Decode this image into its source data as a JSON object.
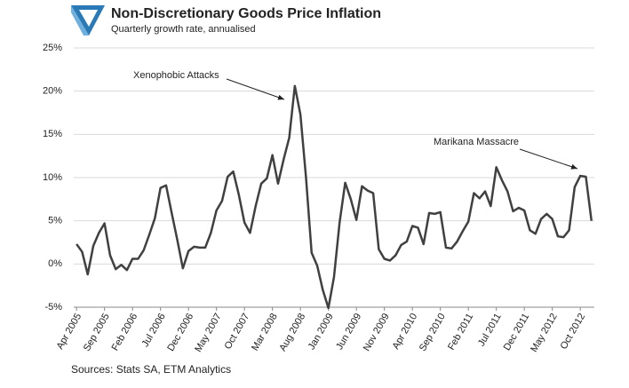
{
  "chart_data": {
    "type": "line",
    "title": "Non-Discretionary Goods Price Inflation",
    "subtitle": "Quarterly growth rate, annualised",
    "source": "Sources: Stats SA, ETM Analytics",
    "categories": [
      "Apr 2005",
      null,
      null,
      null,
      null,
      "Sep 2005",
      null,
      null,
      null,
      null,
      "Feb 2006",
      null,
      null,
      null,
      null,
      "Jul 2006",
      null,
      null,
      null,
      null,
      "Dec 2006",
      null,
      null,
      null,
      null,
      "May 2007",
      null,
      null,
      null,
      null,
      "Oct 2007",
      null,
      null,
      null,
      null,
      "Mar 2008",
      null,
      null,
      null,
      null,
      "Aug 2008",
      null,
      null,
      null,
      null,
      "Jan 2009",
      null,
      null,
      null,
      null,
      "Jun 2009",
      null,
      null,
      null,
      null,
      "Nov 2009",
      null,
      null,
      null,
      null,
      "Apr 2010",
      null,
      null,
      null,
      null,
      "Sep 2010",
      null,
      null,
      null,
      null,
      "Feb 2011",
      null,
      null,
      null,
      null,
      "Jul 2011",
      null,
      null,
      null,
      null,
      "Dec 2011",
      null,
      null,
      null,
      null,
      "May 2012",
      null,
      null,
      null,
      null,
      "Oct 2012",
      null,
      null
    ],
    "series": [
      {
        "name": "Non-Discretionary Goods Price Inflation",
        "color": "#404040",
        "values": [
          2.3,
          1.4,
          -1.2,
          2.1,
          3.6,
          4.7,
          1.0,
          -0.6,
          -0.1,
          -0.7,
          0.6,
          0.6,
          1.6,
          3.4,
          5.3,
          8.8,
          9.1,
          5.9,
          2.8,
          -0.5,
          1.5,
          2.0,
          1.9,
          1.9,
          3.6,
          6.2,
          7.3,
          10.1,
          10.7,
          8.0,
          4.8,
          3.6,
          6.7,
          9.3,
          9.9,
          12.6,
          9.3,
          12.1,
          14.6,
          20.6,
          17.3,
          10.0,
          1.3,
          -0.2,
          -3.0,
          -5.1,
          -1.5,
          4.8,
          9.4,
          7.5,
          5.1,
          9.0,
          8.5,
          8.2,
          1.7,
          0.6,
          0.4,
          1.0,
          2.2,
          2.6,
          4.4,
          4.2,
          2.3,
          5.9,
          5.8,
          6.0,
          1.9,
          1.8,
          2.6,
          3.8,
          4.9,
          8.2,
          7.6,
          8.4,
          6.7,
          11.2,
          9.7,
          8.4,
          6.1,
          6.5,
          6.2,
          3.9,
          3.5,
          5.2,
          5.8,
          5.2,
          3.2,
          3.1,
          3.9,
          8.9,
          10.2,
          10.1,
          5.0
        ]
      }
    ],
    "ylim": [
      -5,
      25
    ],
    "yticks": [
      {
        "value": -5,
        "label": "-5%"
      },
      {
        "value": 0,
        "label": "0%"
      },
      {
        "value": 5,
        "label": "5%"
      },
      {
        "value": 10,
        "label": "10%"
      },
      {
        "value": 15,
        "label": "15%"
      },
      {
        "value": 20,
        "label": "20%"
      },
      {
        "value": 25,
        "label": "25%"
      }
    ],
    "grid": true,
    "annotations": [
      {
        "text": "Xenophobic Attacks"
      },
      {
        "text": "Marikana Massacre"
      }
    ]
  }
}
